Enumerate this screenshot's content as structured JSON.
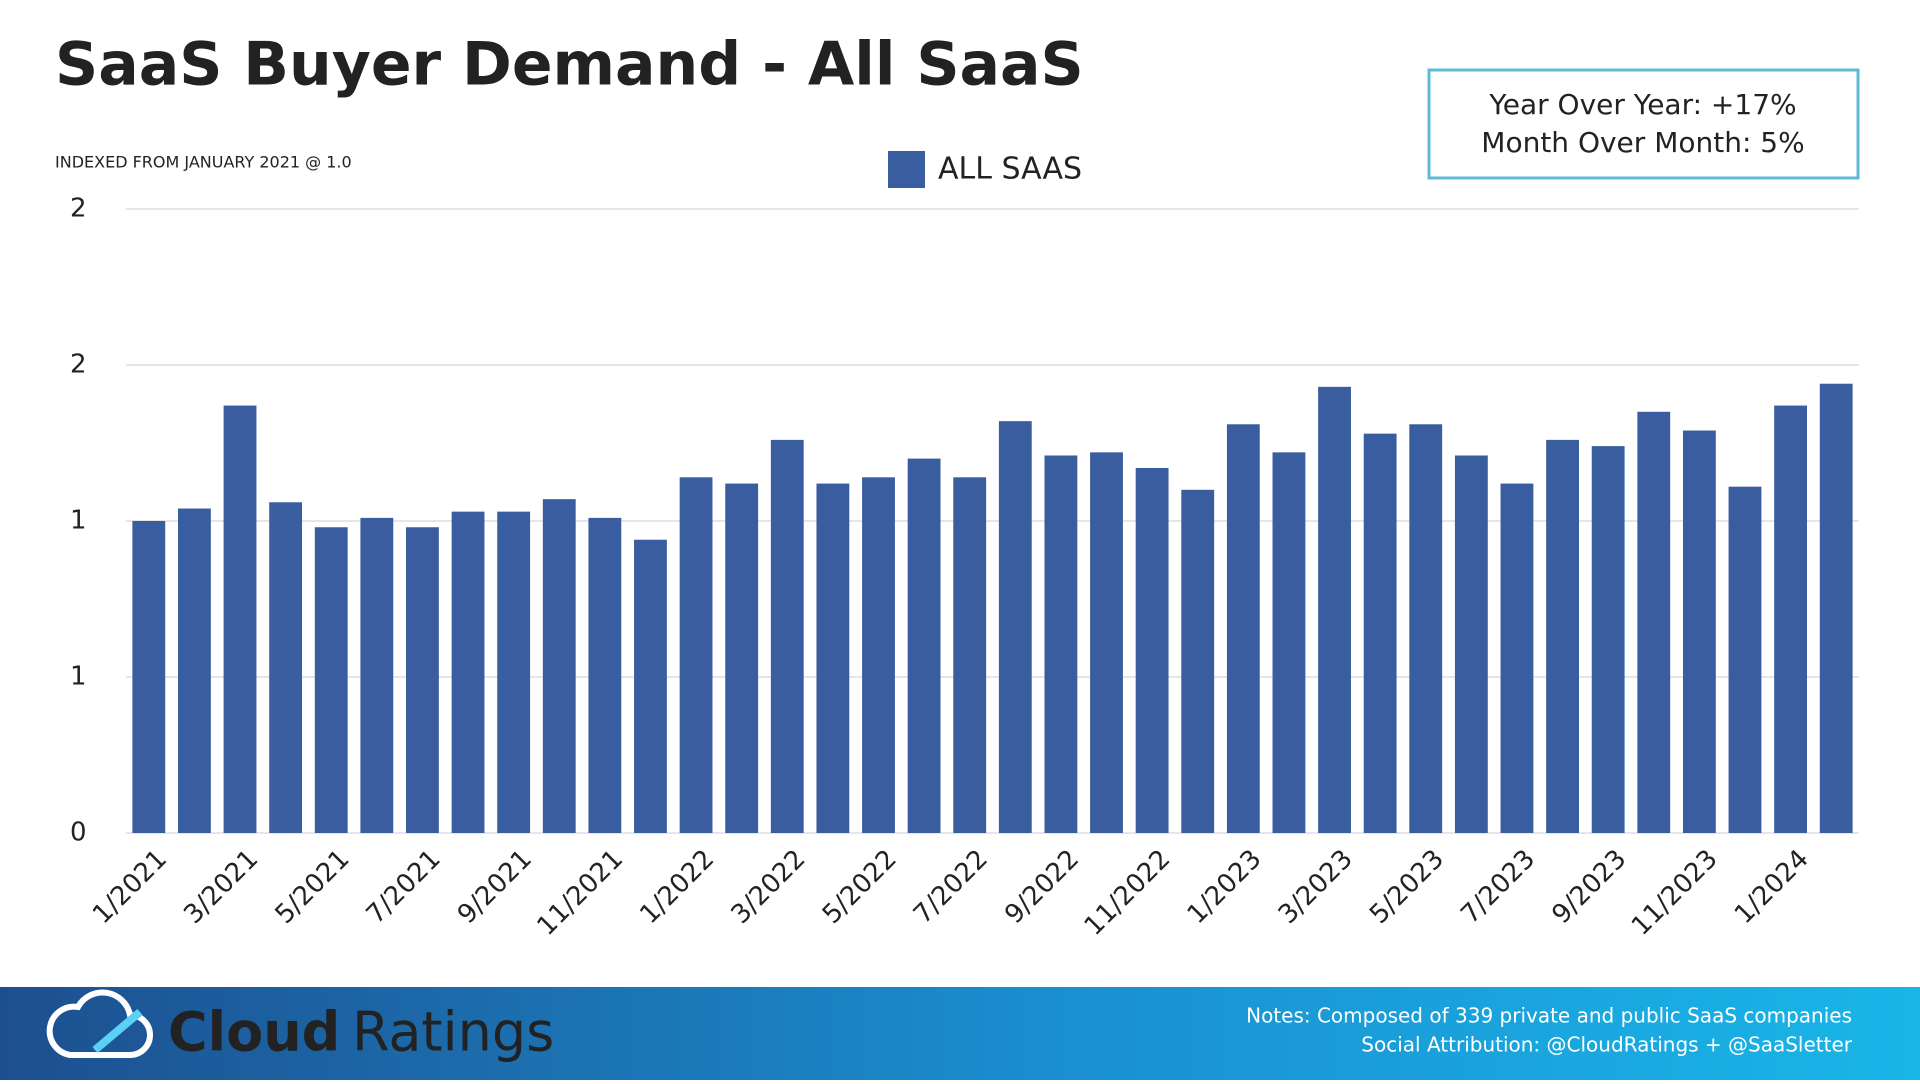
{
  "chart_data": {
    "type": "bar",
    "title": "SaaS Buyer Demand - All SaaS",
    "subtitle": "INDEXED FROM JANUARY 2021 @ 1.0",
    "annotations": [
      "Year Over Year: +17%",
      "Month Over Month: 5%"
    ],
    "categories": [
      "1/2021",
      null,
      "3/2021",
      null,
      "5/2021",
      null,
      "7/2021",
      null,
      "9/2021",
      null,
      "11/2021",
      null,
      "1/2022",
      null,
      "3/2022",
      null,
      "5/2022",
      null,
      "7/2022",
      null,
      "9/2022",
      null,
      "11/2022",
      null,
      "1/2023",
      null,
      "3/2023",
      null,
      "5/2023",
      null,
      "7/2023",
      null,
      "9/2023",
      null,
      "11/2023",
      null,
      "1/2024",
      null
    ],
    "series": [
      {
        "name": "ALL SAAS",
        "color": "#3a5d9f",
        "values": [
          1.0,
          1.04,
          1.37,
          1.06,
          0.98,
          1.01,
          0.98,
          1.03,
          1.03,
          1.07,
          1.01,
          0.94,
          1.14,
          1.12,
          1.26,
          1.12,
          1.14,
          1.2,
          1.14,
          1.32,
          1.21,
          1.22,
          1.17,
          1.1,
          1.31,
          1.22,
          1.43,
          1.28,
          1.31,
          1.21,
          1.12,
          1.26,
          1.24,
          1.35,
          1.29,
          1.11,
          1.37,
          1.44
        ]
      }
    ],
    "ylim": [
      0,
      2
    ],
    "yticks": [
      0,
      {
        "value": 0.5,
        "label": "1"
      },
      1,
      {
        "value": 1.5,
        "label": "2"
      },
      2
    ],
    "grid": true,
    "legend": "top"
  },
  "footer": {
    "brand_bold": "Cloud",
    "brand": "Ratings",
    "notes": [
      "Notes: Composed of 339 private and public SaaS companies",
      "Social Attribution: @CloudRatings + @SaaSletter"
    ]
  }
}
